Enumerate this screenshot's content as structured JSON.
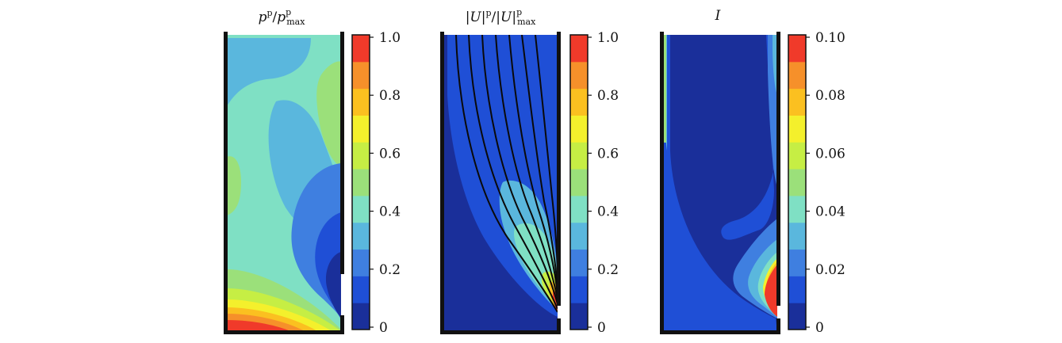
{
  "panels": [
    {
      "id": "pressure",
      "title": {
        "base": "p",
        "sup": "p",
        "sep": "/",
        "base2": "p",
        "sub2": "max",
        "sup2": "p"
      },
      "colorbar_ticks": [
        "1.0",
        "0.8",
        "0.6",
        "0.4",
        "0.2",
        "0"
      ]
    },
    {
      "id": "velocity",
      "title": {
        "base": "|U|",
        "sup": "p",
        "sep": "/",
        "base2": "|U|",
        "sub2": "max",
        "sup2": "p"
      },
      "colorbar_ticks": [
        "1.0",
        "0.8",
        "0.6",
        "0.4",
        "0.2",
        "0"
      ]
    },
    {
      "id": "intensity",
      "title": {
        "base": "I"
      },
      "colorbar_ticks": [
        "0.10",
        "0.08",
        "0.06",
        "0.04",
        "0.02",
        "0"
      ]
    }
  ],
  "colormap": [
    "#1a2f9a",
    "#1f4fd6",
    "#3f7fe0",
    "#5ab7dd",
    "#7fe0c4",
    "#9be07a",
    "#c6ee44",
    "#f4f02c",
    "#fbc020",
    "#f6902a",
    "#f03a2a"
  ]
}
